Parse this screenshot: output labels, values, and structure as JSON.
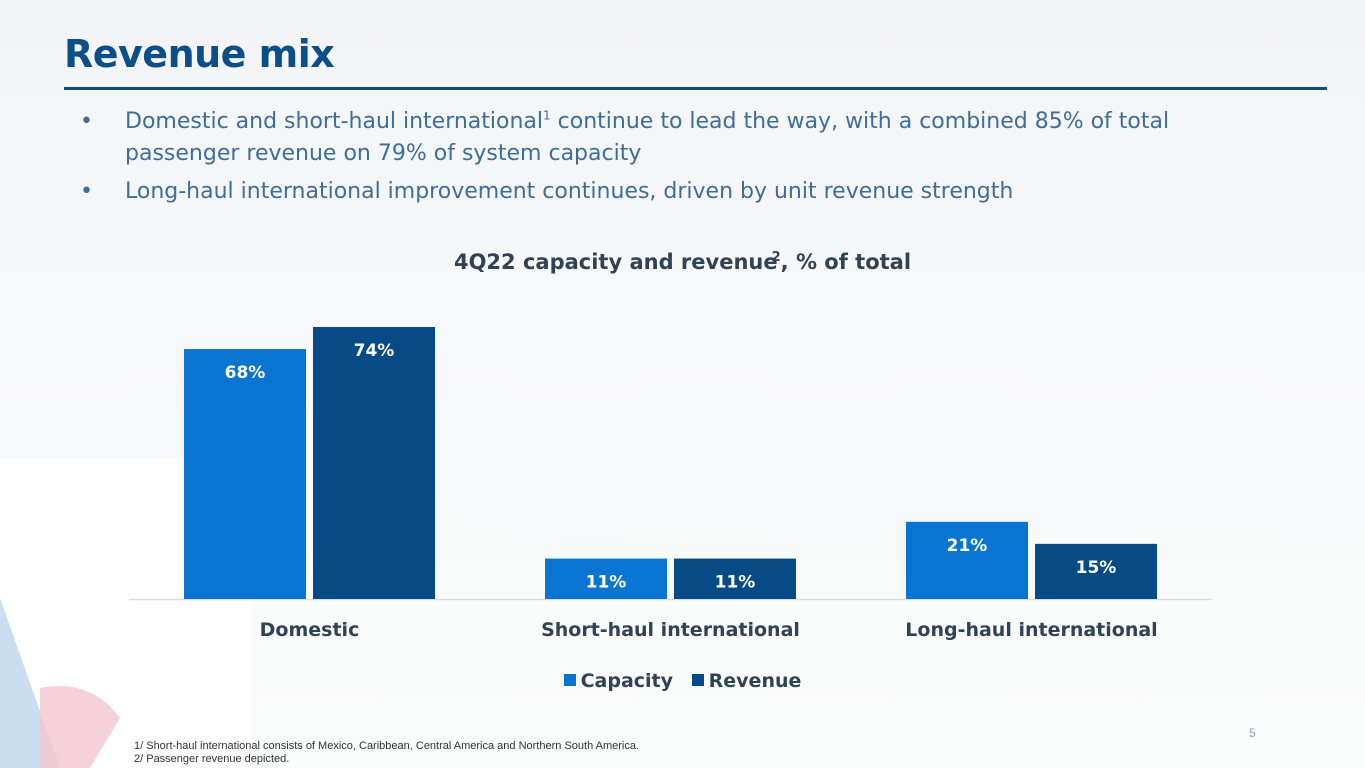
{
  "page": {
    "title": "Revenue mix",
    "bullets": [
      {
        "text_before": "Domestic and short-haul international",
        "sup": "1",
        "text_after": " continue to lead the way, with a combined 85% of total passenger revenue on 79% of system capacity"
      },
      {
        "text_before": "Long-haul international improvement continues, driven by unit revenue strength",
        "sup": "",
        "text_after": ""
      }
    ],
    "bullet_symbol": "•",
    "footnotes": [
      "1/ Short-haul international consists of Mexico, Caribbean, Central America and Northern South America.",
      "2/ Passenger revenue depicted."
    ],
    "page_number": "5"
  },
  "chart_data": {
    "type": "bar",
    "title": "4Q22 capacity and revenue",
    "title_sup": "2",
    "title_suffix": ", % of total",
    "categories": [
      "Domestic",
      "Short-haul international",
      "Long-haul international"
    ],
    "series": [
      {
        "name": "Capacity",
        "values": [
          68,
          11,
          21
        ],
        "labels": [
          "68%",
          "11%",
          "21%"
        ],
        "color": "#0a74d1"
      },
      {
        "name": "Revenue",
        "values": [
          74,
          11,
          15
        ],
        "labels": [
          "74%",
          "11%",
          "15%"
        ],
        "color": "#064a86"
      }
    ],
    "ylim": [
      0,
      74
    ],
    "legend_position": "bottom",
    "grid": false
  },
  "colors": {
    "title": "#0b4f8a",
    "text": "#3e6d9c",
    "axis": "#d9dde2"
  }
}
